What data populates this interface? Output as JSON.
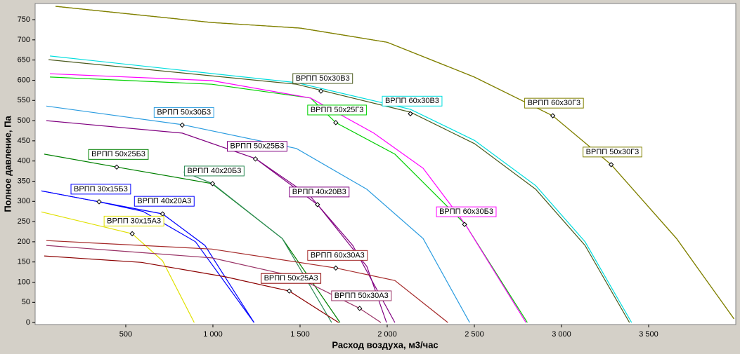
{
  "chart_data": {
    "type": "line",
    "xlabel": "Расход воздуха, м3/час",
    "ylabel": "Полное давление, Па",
    "xlim": [
      -20,
      4000
    ],
    "ylim": [
      -5,
      790
    ],
    "xticks": [
      500,
      {
        "value": 1000,
        "label": "1 000"
      },
      {
        "value": 1500,
        "label": "1 500"
      },
      {
        "value": 2000,
        "label": "2 000"
      },
      {
        "value": 2500,
        "label": "2 500"
      },
      {
        "value": 3000,
        "label": "3 000"
      },
      {
        "value": 3500,
        "label": "3 500"
      }
    ],
    "yticks": [
      0,
      50,
      100,
      150,
      200,
      250,
      300,
      350,
      400,
      450,
      500,
      550,
      600,
      650,
      700,
      750
    ],
    "series": [
      {
        "name": "ВРПП 60х30Г3",
        "color": "#808000",
        "x": [
          97,
          994,
          1503,
          2000,
          2500,
          2950,
          3285,
          3660,
          3990
        ],
        "values": [
          783,
          743,
          729,
          694,
          608,
          512,
          391,
          208,
          9
        ],
        "marker": {
          "x": 2950,
          "y": 512
        }
      },
      {
        "name": "ВРПП 50х30Г3",
        "color": "#808000",
        "x": [
          97,
          994,
          1503,
          2000,
          2500,
          2950,
          3285,
          3660,
          3990
        ],
        "values": [
          783,
          743,
          729,
          694,
          608,
          512,
          391,
          208,
          9
        ],
        "marker": {
          "x": 3285,
          "y": 391
        }
      },
      {
        "name": "ВРПП 50х30В3",
        "color": "#4b5a1e",
        "x": [
          57,
          1479,
          2133,
          2501,
          2852,
          3135,
          3390
        ],
        "values": [
          651,
          590,
          521,
          443,
          330,
          191,
          0
        ],
        "marker": {
          "x": 1620,
          "y": 573
        }
      },
      {
        "name": "ВРПП 60х30В3",
        "color": "#00dede",
        "x": [
          65,
          1479,
          2133,
          2501,
          2852,
          3135,
          3402
        ],
        "values": [
          660,
          594,
          528,
          451,
          339,
          200,
          0
        ],
        "marker": {
          "x": 2133,
          "y": 517
        }
      },
      {
        "name": "ВРПП 50х25Г3",
        "color": "#00d000",
        "x": [
          65,
          994,
          1560,
          1705,
          2044,
          2448,
          2804
        ],
        "values": [
          608,
          590,
          556,
          495,
          417,
          243,
          0
        ],
        "marker": {
          "x": 1705,
          "y": 495
        }
      },
      {
        "name": "ВРПП 60х30Б3",
        "color": "#ff00ff",
        "x": [
          65,
          994,
          1560,
          1923,
          2206,
          2448,
          2796
        ],
        "values": [
          616,
          599,
          556,
          469,
          382,
          243,
          0
        ],
        "marker": {
          "x": 2444,
          "y": 243
        }
      },
      {
        "name": "ВРПП 50х30Б3",
        "color": "#2b9ce0",
        "x": [
          44,
          824,
          1479,
          1883,
          2206,
          2473
        ],
        "values": [
          536,
          490,
          431,
          330,
          208,
          0
        ],
        "marker": {
          "x": 824,
          "y": 489
        }
      },
      {
        "name": "ВРПП 50х25Б3",
        "color": "#800080",
        "x": [
          44,
          824,
          1244,
          1560,
          1802,
          2044
        ],
        "values": [
          500,
          469,
          406,
          312,
          191,
          0
        ],
        "marker": {
          "x": 1244,
          "y": 405
        }
      },
      {
        "name": "ВРПП 40х20В3",
        "color": "#800080",
        "x": [
          1244,
          1600,
          1883,
          1996
        ],
        "values": [
          406,
          292,
          139,
          0
        ],
        "marker": {
          "x": 1600,
          "y": 292
        }
      },
      {
        "name": "ВРПП 50х25Б3",
        "color": "#008000",
        "x": [
          32,
          448,
          994,
          1398,
          1729
        ],
        "values": [
          417,
          385,
          344,
          208,
          0
        ],
        "marker": {
          "x": 448,
          "y": 385
        }
      },
      {
        "name": "ВРПП 40х20Б3",
        "color": "#2e8b57",
        "x": [
          832,
          998,
          1398,
          1681
        ],
        "values": [
          373,
          344,
          208,
          0
        ],
        "marker": {
          "x": 998,
          "y": 344
        }
      },
      {
        "name": "ВРПП 30х15Б3",
        "color": "#0000ff",
        "x": [
          16,
          347,
          600,
          900,
          1236
        ],
        "values": [
          326,
          299,
          275,
          200,
          0
        ],
        "marker": {
          "x": 347,
          "y": 299
        }
      },
      {
        "name": "ВРПП 40х20А3",
        "color": "#0000ff",
        "x": [
          16,
          347,
          711,
          954,
          1236
        ],
        "values": [
          326,
          299,
          269,
          191,
          0
        ],
        "marker": {
          "x": 711,
          "y": 269
        }
      },
      {
        "name": "ВРПП 30х15А3",
        "color": "#e0e000",
        "x": [
          16,
          537,
          711,
          893
        ],
        "values": [
          274,
          220,
          153,
          0
        ],
        "marker": {
          "x": 537,
          "y": 220
        }
      },
      {
        "name": "ВРПП 60х30А3",
        "color": "#a52a2a",
        "x": [
          44,
          994,
          1705,
          2044,
          2348
        ],
        "values": [
          203,
          182,
          135,
          104,
          0
        ],
        "marker": {
          "x": 1705,
          "y": 135
        }
      },
      {
        "name": "ВРПП 50х30А3",
        "color": "#993366",
        "x": [
          44,
          994,
          1479,
          1842,
          1964
        ],
        "values": [
          191,
          160,
          113,
          35,
          0
        ],
        "marker": {
          "x": 1842,
          "y": 35
        }
      },
      {
        "name": "ВРПП 50х25А3",
        "color": "#8b0000",
        "x": [
          32,
          590,
          1074,
          1438,
          1721
        ],
        "values": [
          165,
          149,
          113,
          78,
          0
        ],
        "marker": {
          "x": 1438,
          "y": 78
        }
      }
    ]
  }
}
